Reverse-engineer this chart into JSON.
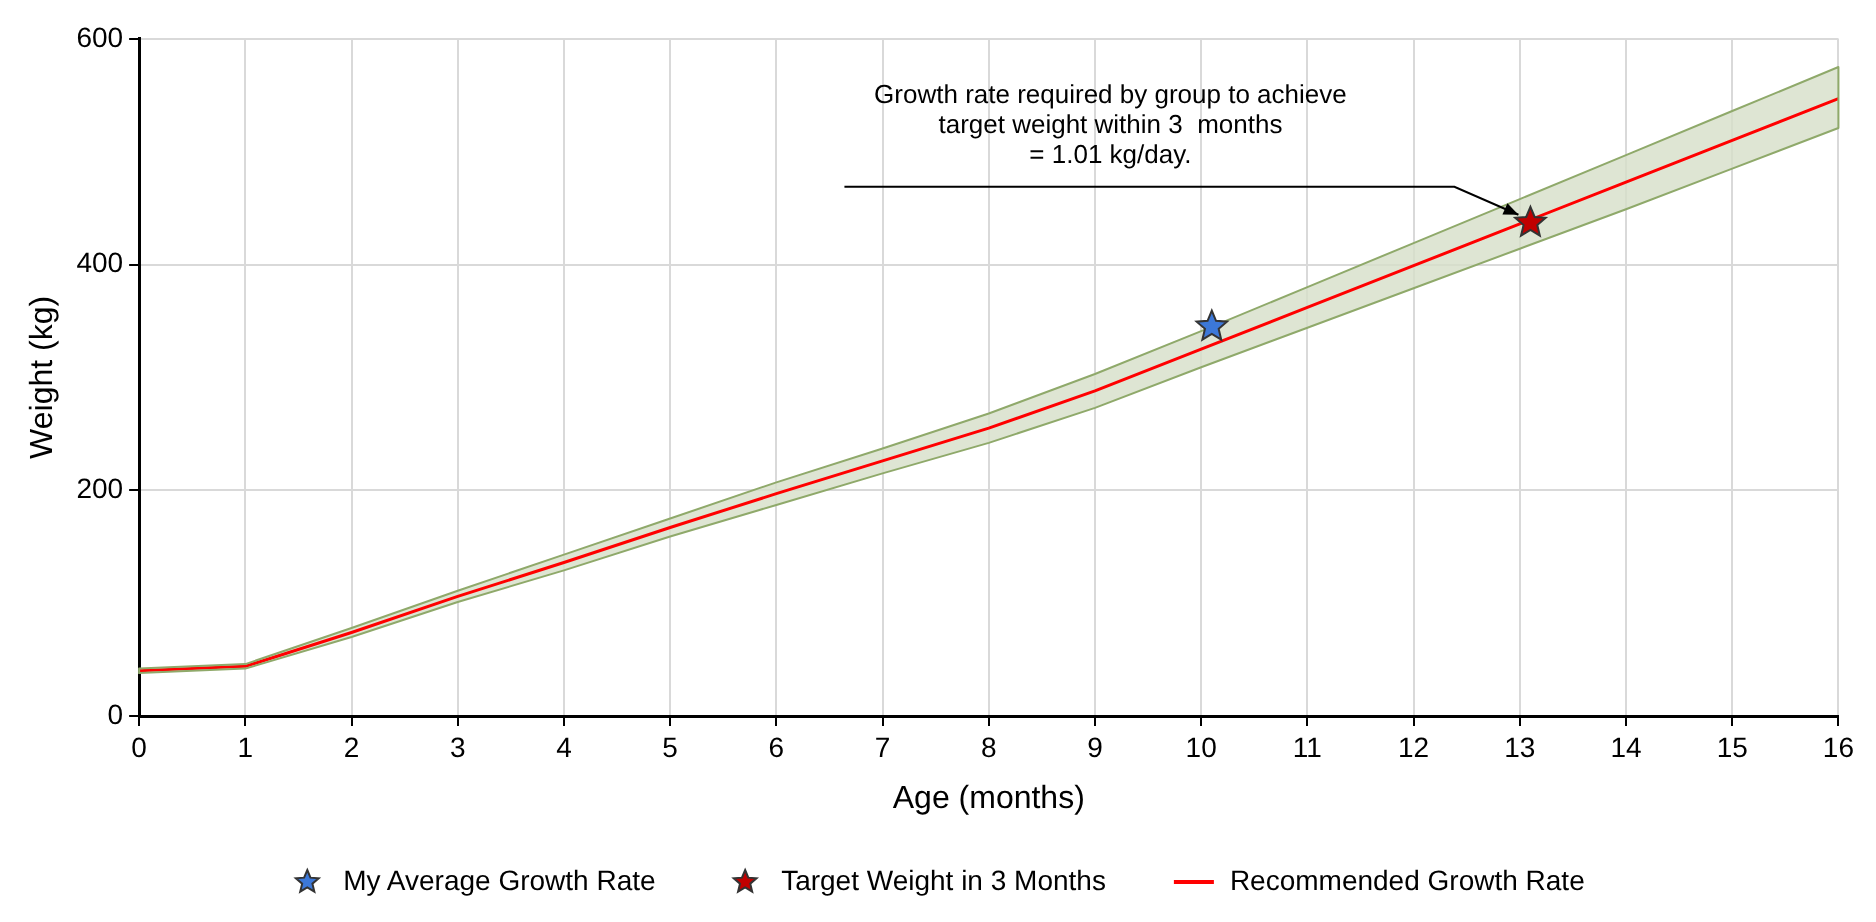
{
  "chart_data": {
    "type": "line",
    "xlabel": "Age (months)",
    "ylabel": "Weight (kg)",
    "xlim": [
      0,
      16
    ],
    "xticks": [
      0,
      1,
      2,
      3,
      4,
      5,
      6,
      7,
      8,
      9,
      10,
      11,
      12,
      13,
      14,
      15,
      16
    ],
    "ylim": [
      0,
      600
    ],
    "yticks": [
      0,
      200,
      400,
      600
    ],
    "grid": true,
    "legend": "bottom",
    "series": [
      {
        "name": "My Average Growth Rate",
        "type": "scatter",
        "marker": "star",
        "color": "#3c78d8",
        "x": [
          10.1
        ],
        "values": [
          345
        ]
      },
      {
        "name": "Target Weight in 3 Months",
        "type": "scatter",
        "marker": "star",
        "color": "#c00000",
        "x": [
          13.1
        ],
        "values": [
          437
        ]
      },
      {
        "name": "Recommended Growth Rate",
        "marker": "none",
        "color": "#ff0000",
        "x": [
          0,
          1,
          2,
          3,
          4,
          5,
          6,
          7,
          8,
          9,
          10,
          11,
          12,
          13,
          14,
          15,
          16
        ],
        "values": [
          40,
          44,
          74,
          106,
          136,
          167,
          197,
          226,
          255,
          288,
          325,
          362,
          399,
          436,
          473,
          510,
          547
        ],
        "lower": [
          38,
          42,
          70,
          101,
          129,
          159,
          187,
          215,
          242,
          273,
          309,
          344,
          379,
          414,
          449,
          485,
          521
        ],
        "upper": [
          42,
          46,
          78,
          111,
          143,
          175,
          207,
          237,
          268,
          303,
          341,
          380,
          419,
          458,
          497,
          536,
          575
        ]
      }
    ],
    "annotations": [
      {
        "text": "Growth rate required by group to achieve\ntarget weight within 3  months\n= 1.01 kg/day.",
        "x": 13.1,
        "y": 437
      }
    ]
  }
}
